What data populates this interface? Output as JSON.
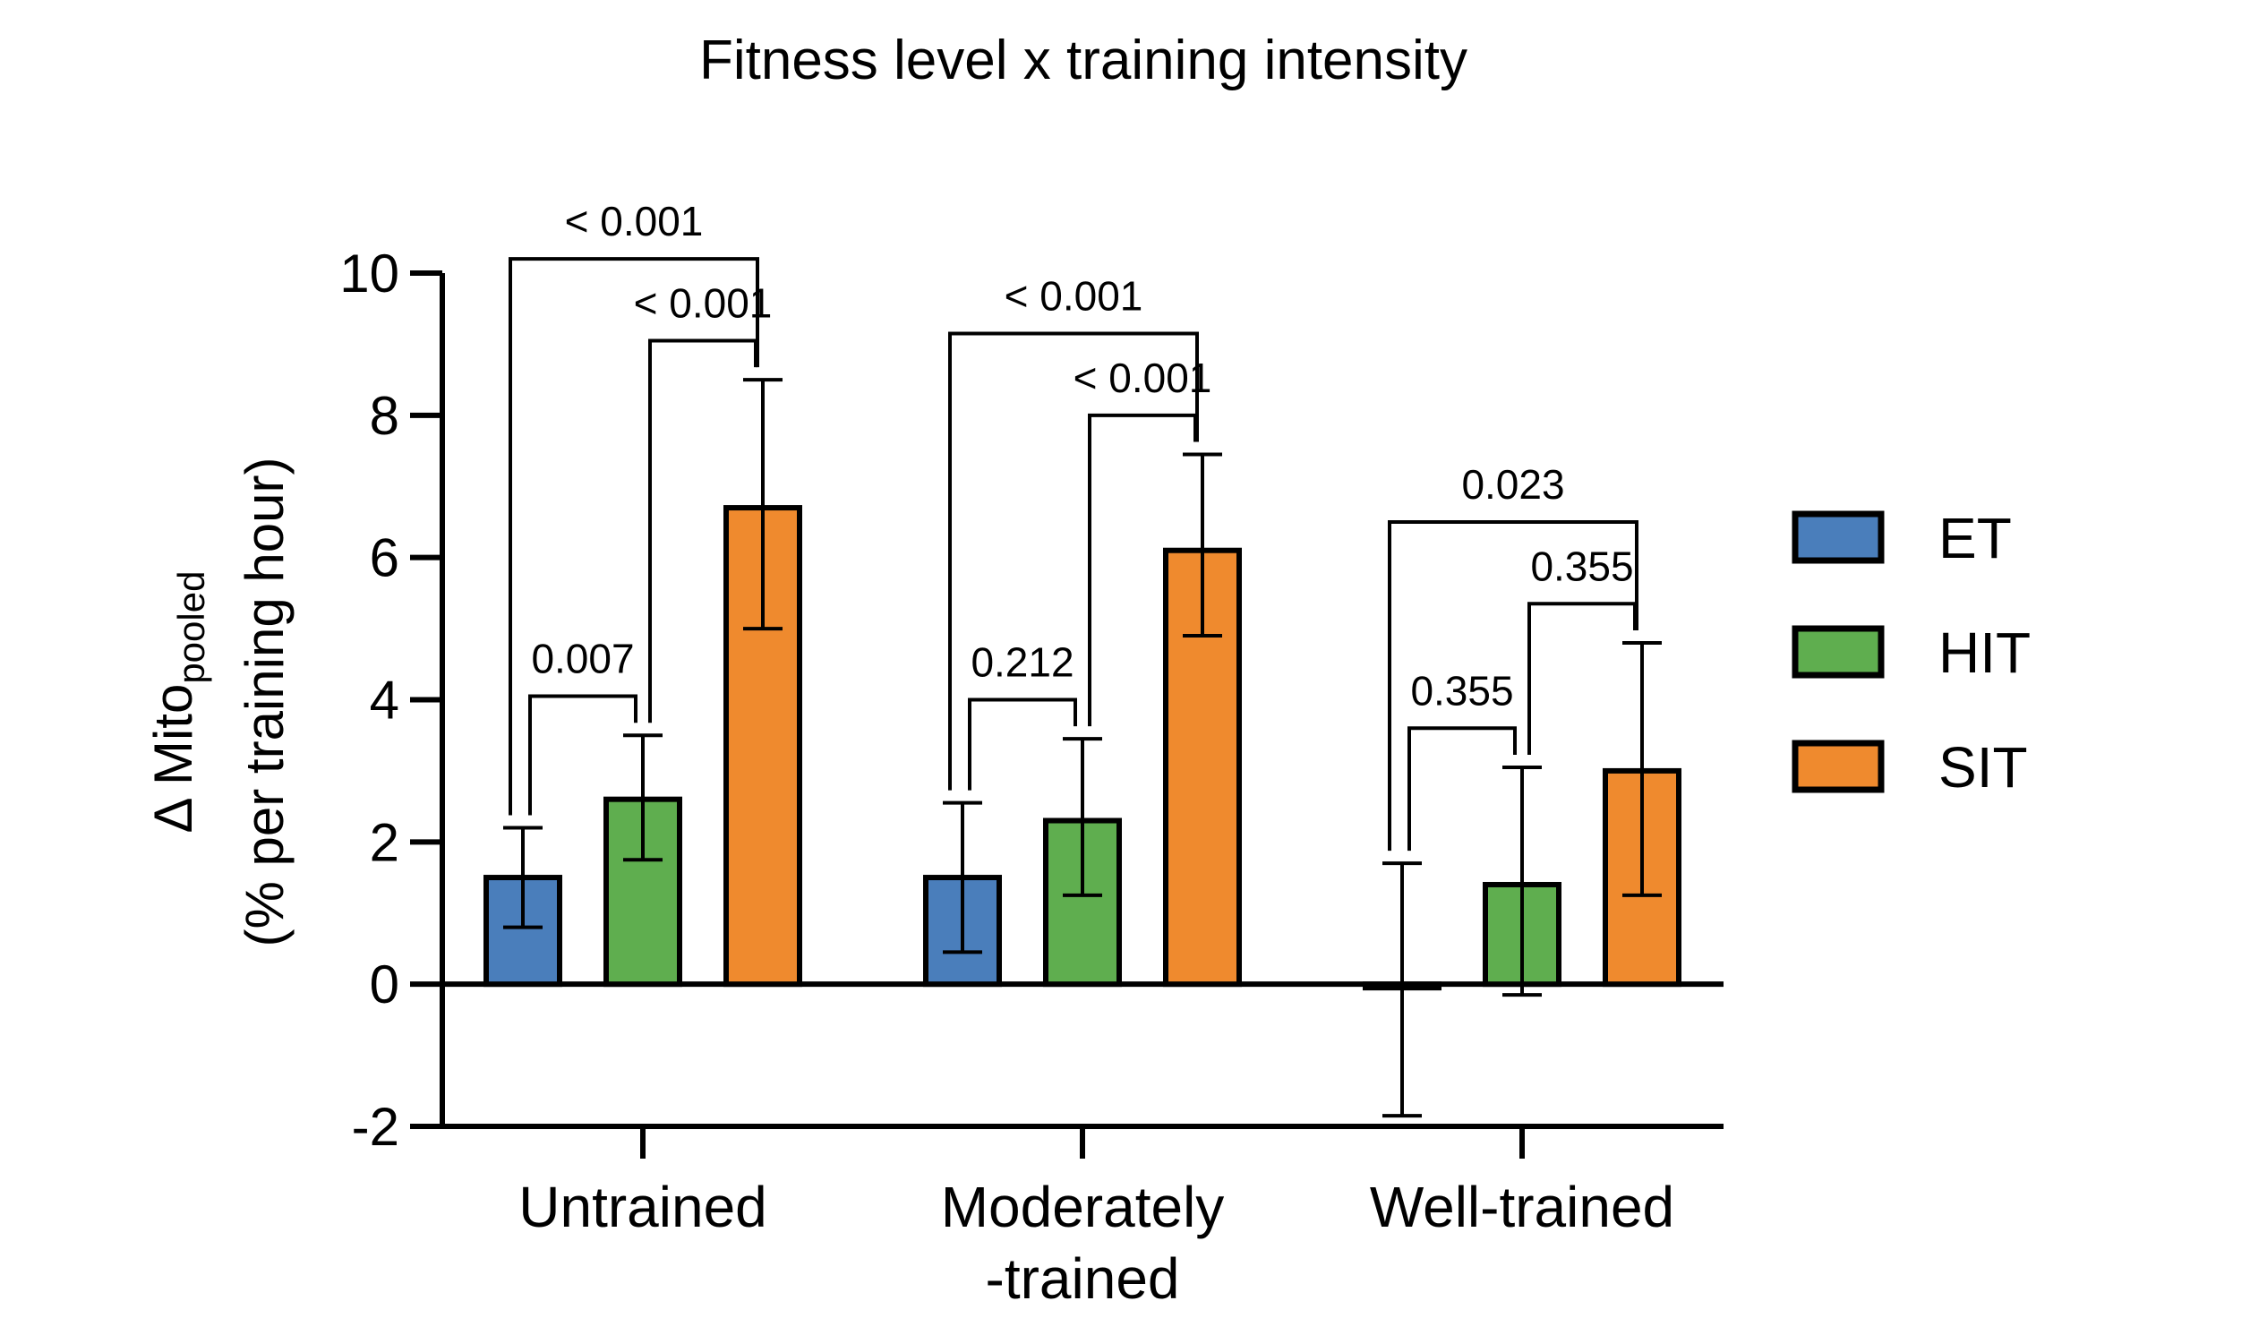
{
  "colors": {
    "ET": "#4a7ebb",
    "HIT": "#5fae4f",
    "SIT": "#ef8a2e",
    "axis": "#000000"
  },
  "chart_data": {
    "type": "bar",
    "title": "Fitness level x training intensity",
    "ylabel_main": "Δ Mito",
    "ylabel_sub": "pooled",
    "ylabel_line2": "(% per training hour)",
    "ylim": [
      -2,
      10
    ],
    "yticks": [
      "-2",
      "0",
      "2",
      "4",
      "6",
      "8",
      "10"
    ],
    "yticks_values": [
      -2,
      0,
      2,
      4,
      6,
      8,
      10
    ],
    "categories": [
      "Untrained",
      "Moderately\n-trained",
      "Well-trained"
    ],
    "category_lines": [
      [
        "Untrained"
      ],
      [
        "Moderately",
        "-trained"
      ],
      [
        "Well-trained"
      ]
    ],
    "series": [
      {
        "name": "ET",
        "values": [
          1.5,
          1.5,
          -0.05
        ],
        "err_low": [
          0.8,
          0.45,
          -1.85
        ],
        "err_high": [
          2.2,
          2.55,
          1.7
        ]
      },
      {
        "name": "HIT",
        "values": [
          2.6,
          2.3,
          1.4
        ],
        "err_low": [
          1.75,
          1.25,
          -0.15
        ],
        "err_high": [
          3.5,
          3.45,
          3.05
        ]
      },
      {
        "name": "SIT",
        "values": [
          6.7,
          6.1,
          3.0
        ],
        "err_low": [
          5.0,
          4.9,
          1.25
        ],
        "err_high": [
          8.5,
          7.45,
          4.8
        ]
      }
    ],
    "comparisons": [
      {
        "group": 0,
        "from": "ET",
        "to": "HIT",
        "label": "0.007"
      },
      {
        "group": 0,
        "from": "HIT",
        "to": "SIT",
        "label": "< 0.001"
      },
      {
        "group": 0,
        "from": "ET",
        "to": "SIT",
        "label": "< 0.001"
      },
      {
        "group": 1,
        "from": "ET",
        "to": "HIT",
        "label": "0.212"
      },
      {
        "group": 1,
        "from": "HIT",
        "to": "SIT",
        "label": "< 0.001"
      },
      {
        "group": 1,
        "from": "ET",
        "to": "SIT",
        "label": "< 0.001"
      },
      {
        "group": 2,
        "from": "ET",
        "to": "HIT",
        "label": "0.355"
      },
      {
        "group": 2,
        "from": "HIT",
        "to": "SIT",
        "label": "0.355"
      },
      {
        "group": 2,
        "from": "ET",
        "to": "SIT",
        "label": "0.023"
      }
    ],
    "legend": [
      "ET",
      "HIT",
      "SIT"
    ],
    "legend_position": "right",
    "grid": false
  }
}
